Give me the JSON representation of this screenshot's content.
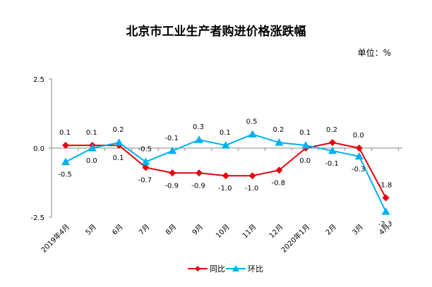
{
  "chart_data": {
    "type": "line",
    "title": "北京市工业生产者购进价格涨跌幅",
    "unit_label": "单位：%",
    "categories": [
      "2019年4月",
      "5月",
      "6月",
      "7月",
      "8月",
      "9月",
      "10月",
      "11月",
      "12月",
      "2020年1月",
      "2月",
      "3月",
      "4月"
    ],
    "y_ticks": [
      "2.5",
      "0.0",
      "-2.5"
    ],
    "ylim": [
      -2.5,
      2.5
    ],
    "grid": false,
    "legend_position": "bottom",
    "series": [
      {
        "name": "同比",
        "color": "#e8000b",
        "marker": "diamond",
        "values": [
          0.1,
          0.1,
          0.1,
          -0.7,
          -0.9,
          -0.9,
          -1.0,
          -1.0,
          -0.8,
          0.0,
          0.2,
          0.0,
          -1.8
        ],
        "labels": [
          "0.1",
          "0.1",
          "0.1",
          "-0.7",
          "-0.9",
          "-0.9",
          "-1.0",
          "-1.0",
          "-0.8",
          "0.0",
          "0.2",
          "0.0",
          "-1.8"
        ]
      },
      {
        "name": "环比",
        "color": "#00b0f0",
        "marker": "triangle",
        "values": [
          -0.5,
          0.0,
          0.2,
          -0.5,
          -0.1,
          0.3,
          0.1,
          0.5,
          0.2,
          0.1,
          -0.1,
          -0.3,
          -2.3
        ],
        "labels": [
          "-0.5",
          "0.0",
          "0.2",
          "-0.5",
          "-0.1",
          "0.3",
          "0.1",
          "0.5",
          "0.2",
          "0.1",
          "-0.1",
          "-0.3",
          "-2.3"
        ]
      }
    ]
  }
}
